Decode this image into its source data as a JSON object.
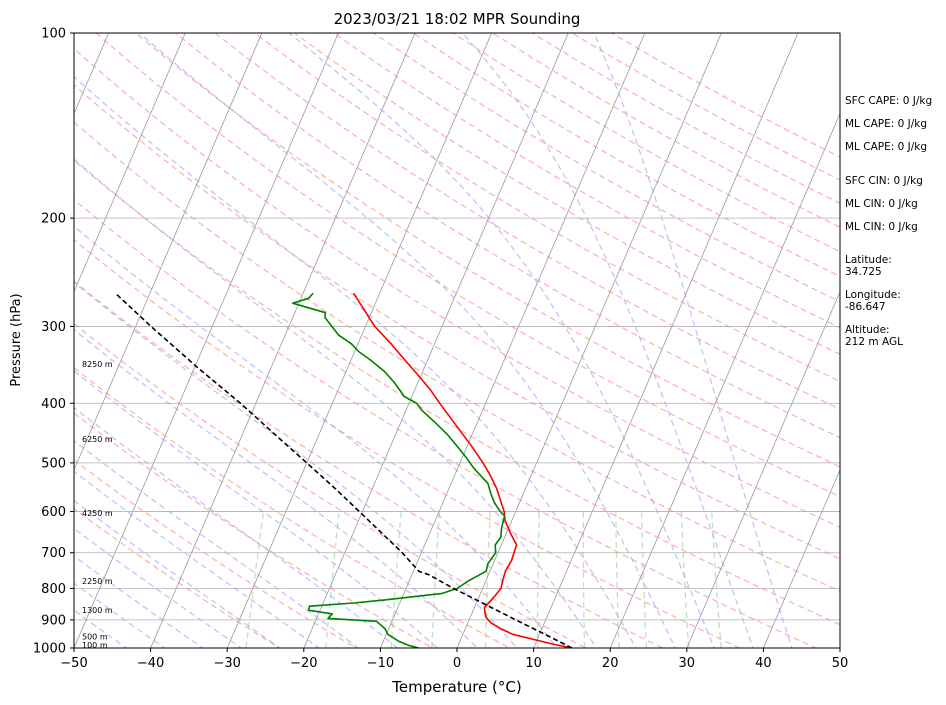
{
  "chart_data": {
    "type": "line",
    "subtype": "skew-T log-P sounding",
    "title": "2023/03/21 18:02 MPR Sounding",
    "xlabel": "Temperature (°C)",
    "ylabel": "Pressure (hPa)",
    "xlim": [
      -50,
      50
    ],
    "ylim": [
      1000,
      100
    ],
    "y_scale": "log",
    "grid": true,
    "x_ticks": [
      "−50",
      "−40",
      "−30",
      "−20",
      "−10",
      "0",
      "10",
      "20",
      "30",
      "40",
      "50"
    ],
    "x_tick_values": [
      -50,
      -40,
      -30,
      -20,
      -10,
      0,
      10,
      20,
      30,
      40,
      50
    ],
    "y_ticks": [
      "1000",
      "900",
      "800",
      "700",
      "600",
      "500",
      "400",
      "300",
      "200",
      "100"
    ],
    "y_tick_values": [
      1000,
      900,
      800,
      700,
      600,
      500,
      400,
      300,
      200,
      100
    ],
    "height_labels": [
      {
        "text": "100 m",
        "p": 988
      },
      {
        "text": "500 m",
        "p": 957
      },
      {
        "text": "1300 m",
        "p": 868
      },
      {
        "text": "2250 m",
        "p": 778
      },
      {
        "text": "4250 m",
        "p": 603
      },
      {
        "text": "6250 m",
        "p": 457
      },
      {
        "text": "8250 m",
        "p": 345
      }
    ],
    "series": [
      {
        "role": "temperature",
        "color": "#ff0000",
        "points": [
          [
            1000,
            15.0
          ],
          [
            985,
            12.2
          ],
          [
            970,
            9.8
          ],
          [
            950,
            6.5
          ],
          [
            930,
            4.6
          ],
          [
            910,
            3.0
          ],
          [
            890,
            2.0
          ],
          [
            860,
            1.3
          ],
          [
            830,
            1.9
          ],
          [
            800,
            2.4
          ],
          [
            780,
            2.2
          ],
          [
            750,
            2.0
          ],
          [
            720,
            2.2
          ],
          [
            700,
            2.1
          ],
          [
            680,
            2.0
          ],
          [
            650,
            0.5
          ],
          [
            620,
            -0.9
          ],
          [
            600,
            -1.5
          ],
          [
            580,
            -2.4
          ],
          [
            550,
            -3.8
          ],
          [
            520,
            -5.6
          ],
          [
            500,
            -7.0
          ],
          [
            470,
            -9.4
          ],
          [
            440,
            -12.1
          ],
          [
            420,
            -14.0
          ],
          [
            400,
            -16.0
          ],
          [
            380,
            -18.0
          ],
          [
            360,
            -20.4
          ],
          [
            340,
            -23.0
          ],
          [
            320,
            -25.7
          ],
          [
            300,
            -28.8
          ],
          [
            285,
            -30.7
          ],
          [
            265,
            -33.4
          ]
        ]
      },
      {
        "role": "dewpoint",
        "color": "#008000",
        "points": [
          [
            1000,
            -5.0
          ],
          [
            990,
            -6.5
          ],
          [
            975,
            -8.0
          ],
          [
            950,
            -9.8
          ],
          [
            930,
            -10.5
          ],
          [
            905,
            -12.0
          ],
          [
            895,
            -18.5
          ],
          [
            880,
            -18.2
          ],
          [
            868,
            -21.5
          ],
          [
            855,
            -21.6
          ],
          [
            845,
            -16.0
          ],
          [
            835,
            -12.0
          ],
          [
            815,
            -5.0
          ],
          [
            800,
            -3.3
          ],
          [
            780,
            -2.4
          ],
          [
            750,
            -0.5
          ],
          [
            730,
            -0.7
          ],
          [
            700,
            -0.3
          ],
          [
            680,
            -0.8
          ],
          [
            660,
            -0.5
          ],
          [
            640,
            -0.9
          ],
          [
            610,
            -1.2
          ],
          [
            600,
            -2.0
          ],
          [
            580,
            -3.3
          ],
          [
            560,
            -4.3
          ],
          [
            540,
            -5.2
          ],
          [
            510,
            -7.9
          ],
          [
            490,
            -9.5
          ],
          [
            470,
            -11.3
          ],
          [
            450,
            -13.2
          ],
          [
            430,
            -15.5
          ],
          [
            410,
            -18.0
          ],
          [
            400,
            -19.0
          ],
          [
            390,
            -21.0
          ],
          [
            370,
            -23.1
          ],
          [
            355,
            -25.0
          ],
          [
            340,
            -27.5
          ],
          [
            330,
            -29.4
          ],
          [
            320,
            -30.9
          ],
          [
            310,
            -33.0
          ],
          [
            300,
            -34.4
          ],
          [
            290,
            -35.8
          ],
          [
            285,
            -36.0
          ],
          [
            275,
            -40.8
          ],
          [
            270,
            -39.0
          ],
          [
            265,
            -38.7
          ]
        ]
      },
      {
        "role": "parcel",
        "color": "#000000",
        "style": "dashed",
        "points": [
          [
            1000,
            15.0
          ],
          [
            950,
            10.7
          ],
          [
            900,
            6.1
          ],
          [
            850,
            1.3
          ],
          [
            800,
            -3.8
          ],
          [
            760,
            -7.8
          ],
          [
            750,
            -9.3
          ],
          [
            700,
            -12.5
          ],
          [
            650,
            -16.3
          ],
          [
            600,
            -20.4
          ],
          [
            550,
            -24.9
          ],
          [
            500,
            -30.0
          ],
          [
            450,
            -35.7
          ],
          [
            400,
            -42.0
          ],
          [
            350,
            -49.6
          ],
          [
            300,
            -58.0
          ],
          [
            265,
            -64.5
          ]
        ]
      }
    ],
    "background_lines": {
      "isotherms_color": "#999999",
      "dry_adiabats_color": "#ff9999",
      "moist_adiabats_color": "#9999ff",
      "mixing_ratio_color": "#88cc88"
    },
    "annotations": [
      "SFC CAPE: 0 J/kg",
      "ML CAPE: 0 J/kg",
      "ML CAPE: 0 J/kg",
      "SFC CIN: 0 J/kg",
      "ML CIN: 0 J/kg",
      "ML CIN: 0 J/kg",
      "Latitude:",
      "34.725",
      "Longitude:",
      "-86.647",
      "Altitude:",
      "212 m AGL"
    ]
  }
}
